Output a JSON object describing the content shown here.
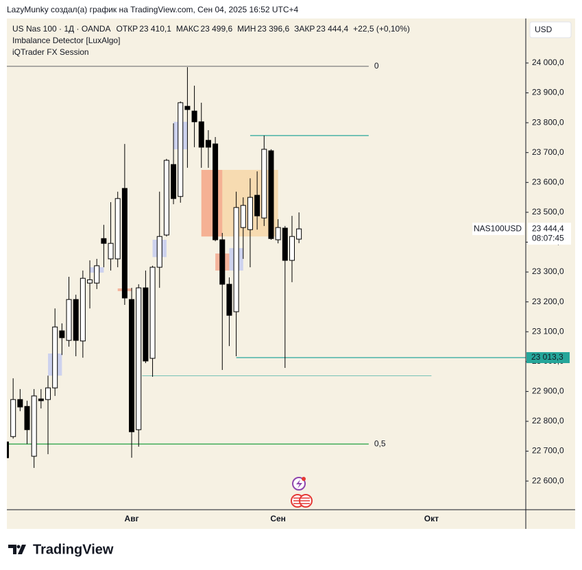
{
  "header": {
    "credit": "LazyMunky создал(а) график на TradingView.com, Сен 04, 2025 16:52 UTC+4",
    "logo": "TradingView"
  },
  "chart_data": {
    "type": "candlestick",
    "title": "US Nas 100 · 1Д · OANDA",
    "legend": [
      "ОТКР",
      "23 410,1",
      "МАКС",
      "23 499,6",
      "МИН",
      "23 396,6",
      "ЗАКР",
      "23 444,4",
      "+22,5 (+0,10%)"
    ],
    "indicators": [
      "Imbalance Detector [LuxAlgo]",
      "iQTrader FX Session"
    ],
    "currency": "USD",
    "symbol_label": "NAS100USD",
    "last_price": {
      "value": 23444.4,
      "label": "23 444,4"
    },
    "countdown": "08:07:45",
    "categories": [
      null,
      null,
      null,
      null,
      null,
      null,
      null,
      null,
      null,
      null,
      null,
      null,
      null,
      null,
      null,
      null,
      null,
      null,
      "Авг",
      null,
      null,
      null,
      null,
      null,
      null,
      null,
      null,
      null,
      null,
      null,
      null,
      null,
      null,
      null,
      null,
      null,
      null,
      null,
      null,
      "Сен",
      null,
      null,
      null,
      null,
      null,
      null,
      null,
      null,
      null,
      null,
      null,
      null,
      null,
      null,
      null,
      null,
      null,
      null,
      null,
      null,
      null,
      "Окт"
    ],
    "open": [
      22731,
      22749,
      22873,
      22850,
      22683,
      22875,
      22873,
      22912,
      23103,
      23071,
      23208,
      23069,
      23263,
      23263,
      23412,
      23344,
      23344,
      23580,
      23208,
      22772,
      23247,
      23011,
      23316,
      23424,
      23660,
      23553,
      23855,
      23839,
      23803,
      23741,
      23729,
      23408,
      23259,
      23167,
      23449,
      23442,
      23557,
      23481,
      23706,
      23408,
      23447,
      23339,
      23410.1,
      null,
      null,
      null,
      null,
      null,
      null,
      null,
      null,
      null,
      null,
      null,
      null,
      null,
      null,
      null,
      null,
      null,
      null,
      null
    ],
    "high": [
      22740,
      22944,
      22908,
      22869,
      22908,
      22908,
      22953,
      23178,
      23128,
      23284,
      23224,
      23305,
      23339,
      23344,
      23458,
      23534,
      23569,
      23729,
      23247,
      23259,
      23305,
      23321,
      23569,
      23679,
      23798,
      23871,
      23986,
      23924,
      23867,
      23775,
      23752,
      23431,
      23282,
      23569,
      23550,
      23614,
      23637,
      23757,
      23711,
      23477,
      23454,
      23488,
      23499.6,
      null,
      null,
      null,
      null,
      null,
      null,
      null,
      null,
      null,
      null,
      null,
      null,
      null,
      null,
      null,
      null,
      null,
      null,
      null
    ],
    "low": [
      22670,
      22742,
      22834,
      22724,
      22644,
      22843,
      22690,
      22885,
      23022,
      23050,
      23018,
      23013,
      23178,
      23243,
      23316,
      23305,
      23316,
      23190,
      22678,
      22715,
      22995,
      22949,
      23247,
      23419,
      23527,
      23532,
      23649,
      23718,
      23649,
      23649,
      23403,
      22972,
      23052,
      23018,
      23344,
      23316,
      23442,
      23454,
      23408,
      23396,
      22979,
      23266,
      23396.6,
      null,
      null,
      null,
      null,
      null,
      null,
      null,
      null,
      null,
      null,
      null,
      null,
      null,
      null,
      null,
      null,
      null,
      null,
      null
    ],
    "close": [
      22678,
      22873,
      22848,
      22772,
      22885,
      22869,
      22912,
      23116,
      23080,
      23208,
      23071,
      23279,
      23274,
      23321,
      23396,
      23396,
      23546,
      23213,
      22765,
      23247,
      23002,
      23316,
      23419,
      23674,
      23546,
      23867,
      23844,
      23803,
      23718,
      23718,
      23408,
      23259,
      23155,
      23516,
      23523,
      23550,
      23488,
      23711,
      23412,
      23449,
      23339,
      23419,
      23444.4,
      null,
      null,
      null,
      null,
      null,
      null,
      null,
      null,
      null,
      null,
      null,
      null,
      null,
      null,
      null,
      null,
      null,
      null,
      null
    ],
    "up_color": "#ffffff",
    "down_color": "#000000",
    "ylim": [
      22504,
      24149
    ],
    "yticks": [
      {
        "value": 22600,
        "label": "22 600,0"
      },
      {
        "value": 22700,
        "label": "22 700,0"
      },
      {
        "value": 22800,
        "label": "22 800,0"
      },
      {
        "value": 22900,
        "label": "22 900,0"
      },
      {
        "value": 23000,
        "label": "23 000,0"
      },
      {
        "value": 23100,
        "label": "23 100,0"
      },
      {
        "value": 23200,
        "label": "23 200,0"
      },
      {
        "value": 23300,
        "label": "23 300,0"
      },
      {
        "value": 23400,
        "label": "23 400,0"
      },
      {
        "value": 23500,
        "label": "23 500,0"
      },
      {
        "value": 23600,
        "label": "23 600,0"
      },
      {
        "value": 23700,
        "label": "23 700,0"
      },
      {
        "value": 23800,
        "label": "23 800,0"
      },
      {
        "value": 23900,
        "label": "23 900,0"
      },
      {
        "value": 24000,
        "label": "24 000,0"
      }
    ],
    "levels": [
      {
        "value": 23989,
        "label": "0",
        "color": "#7f7f7f",
        "start": 0,
        "end": 52
      },
      {
        "value": 22724,
        "label": "0,5",
        "color": "#1e9e3c",
        "start": 0,
        "end": 52
      },
      {
        "value": 23757,
        "color": "#26a69a",
        "start": 35,
        "end": 52
      },
      {
        "value": 23013.3,
        "axis_label": "23 013,3",
        "color": "#26a69a",
        "start": 33,
        "end": 75
      },
      {
        "value": 22953,
        "color": "#26a69a",
        "start": 19.5,
        "end": 61
      }
    ],
    "zones": [
      {
        "top": 23642,
        "bottom": 23419,
        "start": 28,
        "end": 39,
        "color": "#f7d7a8"
      },
      {
        "top": 23642,
        "bottom": 23419,
        "start": 28,
        "end": 31,
        "color": "#f5a98f"
      },
      {
        "top": 23803,
        "bottom": 23711,
        "start": 24,
        "end": 26,
        "color": "#c5cdf0"
      },
      {
        "top": 23408,
        "bottom": 23350,
        "start": 21,
        "end": 23,
        "color": "#c5cdf0"
      },
      {
        "top": 23027,
        "bottom": 22953,
        "start": 6,
        "end": 8,
        "color": "#c5cdf0"
      },
      {
        "top": 23316,
        "bottom": 23298,
        "start": 12,
        "end": 14,
        "color": "#c5cdf0"
      },
      {
        "top": 23380,
        "bottom": 23305,
        "start": 32,
        "end": 34,
        "color": "#c5cdf0"
      },
      {
        "top": 23362,
        "bottom": 23305,
        "start": 30,
        "end": 32,
        "color": "#f5a98f"
      },
      {
        "top": 23245,
        "bottom": 23236,
        "start": 16,
        "end": 18,
        "color": "#f5a98f"
      }
    ]
  }
}
